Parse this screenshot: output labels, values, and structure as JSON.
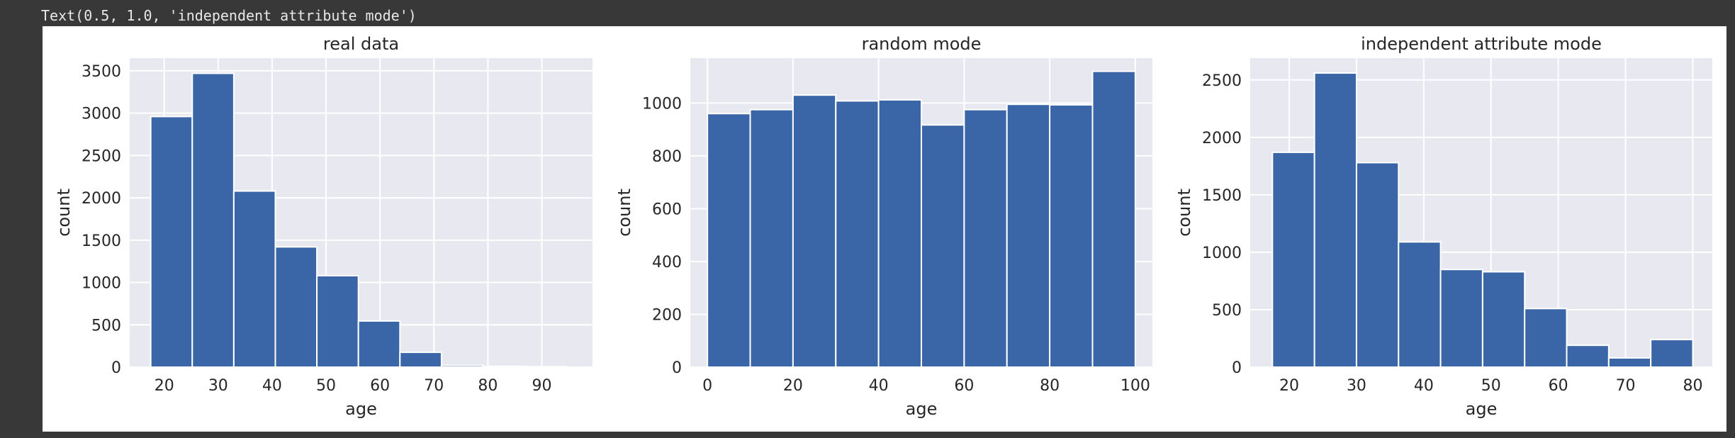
{
  "output": {
    "repr_text": "Text(0.5, 1.0, 'independent attribute mode')"
  },
  "style": {
    "bar_color": "#3a66a8",
    "axes_facecolor": "#e8e8f0",
    "grid_color": "#ffffff",
    "text_color": "#262626"
  },
  "chart_data": [
    {
      "type": "bar",
      "title": "real data",
      "xlabel": "age",
      "ylabel": "count",
      "xlim": [
        13.6,
        99.4
      ],
      "ylim": [
        0,
        3650
      ],
      "xticks": [
        20,
        30,
        40,
        50,
        60,
        70,
        80,
        90
      ],
      "yticks": [
        0,
        500,
        1000,
        1500,
        2000,
        2500,
        3000,
        3500
      ],
      "grid": true,
      "bin_edges": [
        17.5,
        25.2,
        32.9,
        40.6,
        48.3,
        56.0,
        63.7,
        71.4,
        79.1,
        86.8,
        94.5
      ],
      "values": [
        2960,
        3470,
        2080,
        1420,
        1080,
        545,
        175,
        20,
        10,
        5
      ]
    },
    {
      "type": "bar",
      "title": "random mode",
      "xlabel": "age",
      "ylabel": "count",
      "xlim": [
        -4,
        104
      ],
      "ylim": [
        0,
        1170
      ],
      "xticks": [
        0,
        20,
        40,
        60,
        80,
        100
      ],
      "yticks": [
        0,
        200,
        400,
        600,
        800,
        1000
      ],
      "grid": true,
      "bin_edges": [
        0,
        10,
        20,
        30,
        40,
        50,
        60,
        70,
        80,
        90,
        100
      ],
      "values": [
        960,
        975,
        1030,
        1008,
        1012,
        917,
        975,
        995,
        993,
        1120
      ]
    },
    {
      "type": "bar",
      "title": "independent attribute mode",
      "xlabel": "age",
      "ylabel": "count",
      "xlim": [
        14.2,
        82.9
      ],
      "ylim": [
        0,
        2690
      ],
      "xticks": [
        20,
        30,
        40,
        50,
        60,
        70,
        80
      ],
      "yticks": [
        0,
        500,
        1000,
        1500,
        2000,
        2500
      ],
      "grid": true,
      "bin_edges": [
        17.5,
        23.75,
        30.0,
        36.25,
        42.5,
        48.75,
        55.0,
        61.25,
        67.5,
        73.75,
        80.0
      ],
      "values": [
        1870,
        2560,
        1780,
        1090,
        850,
        830,
        510,
        190,
        80,
        240
      ]
    }
  ]
}
